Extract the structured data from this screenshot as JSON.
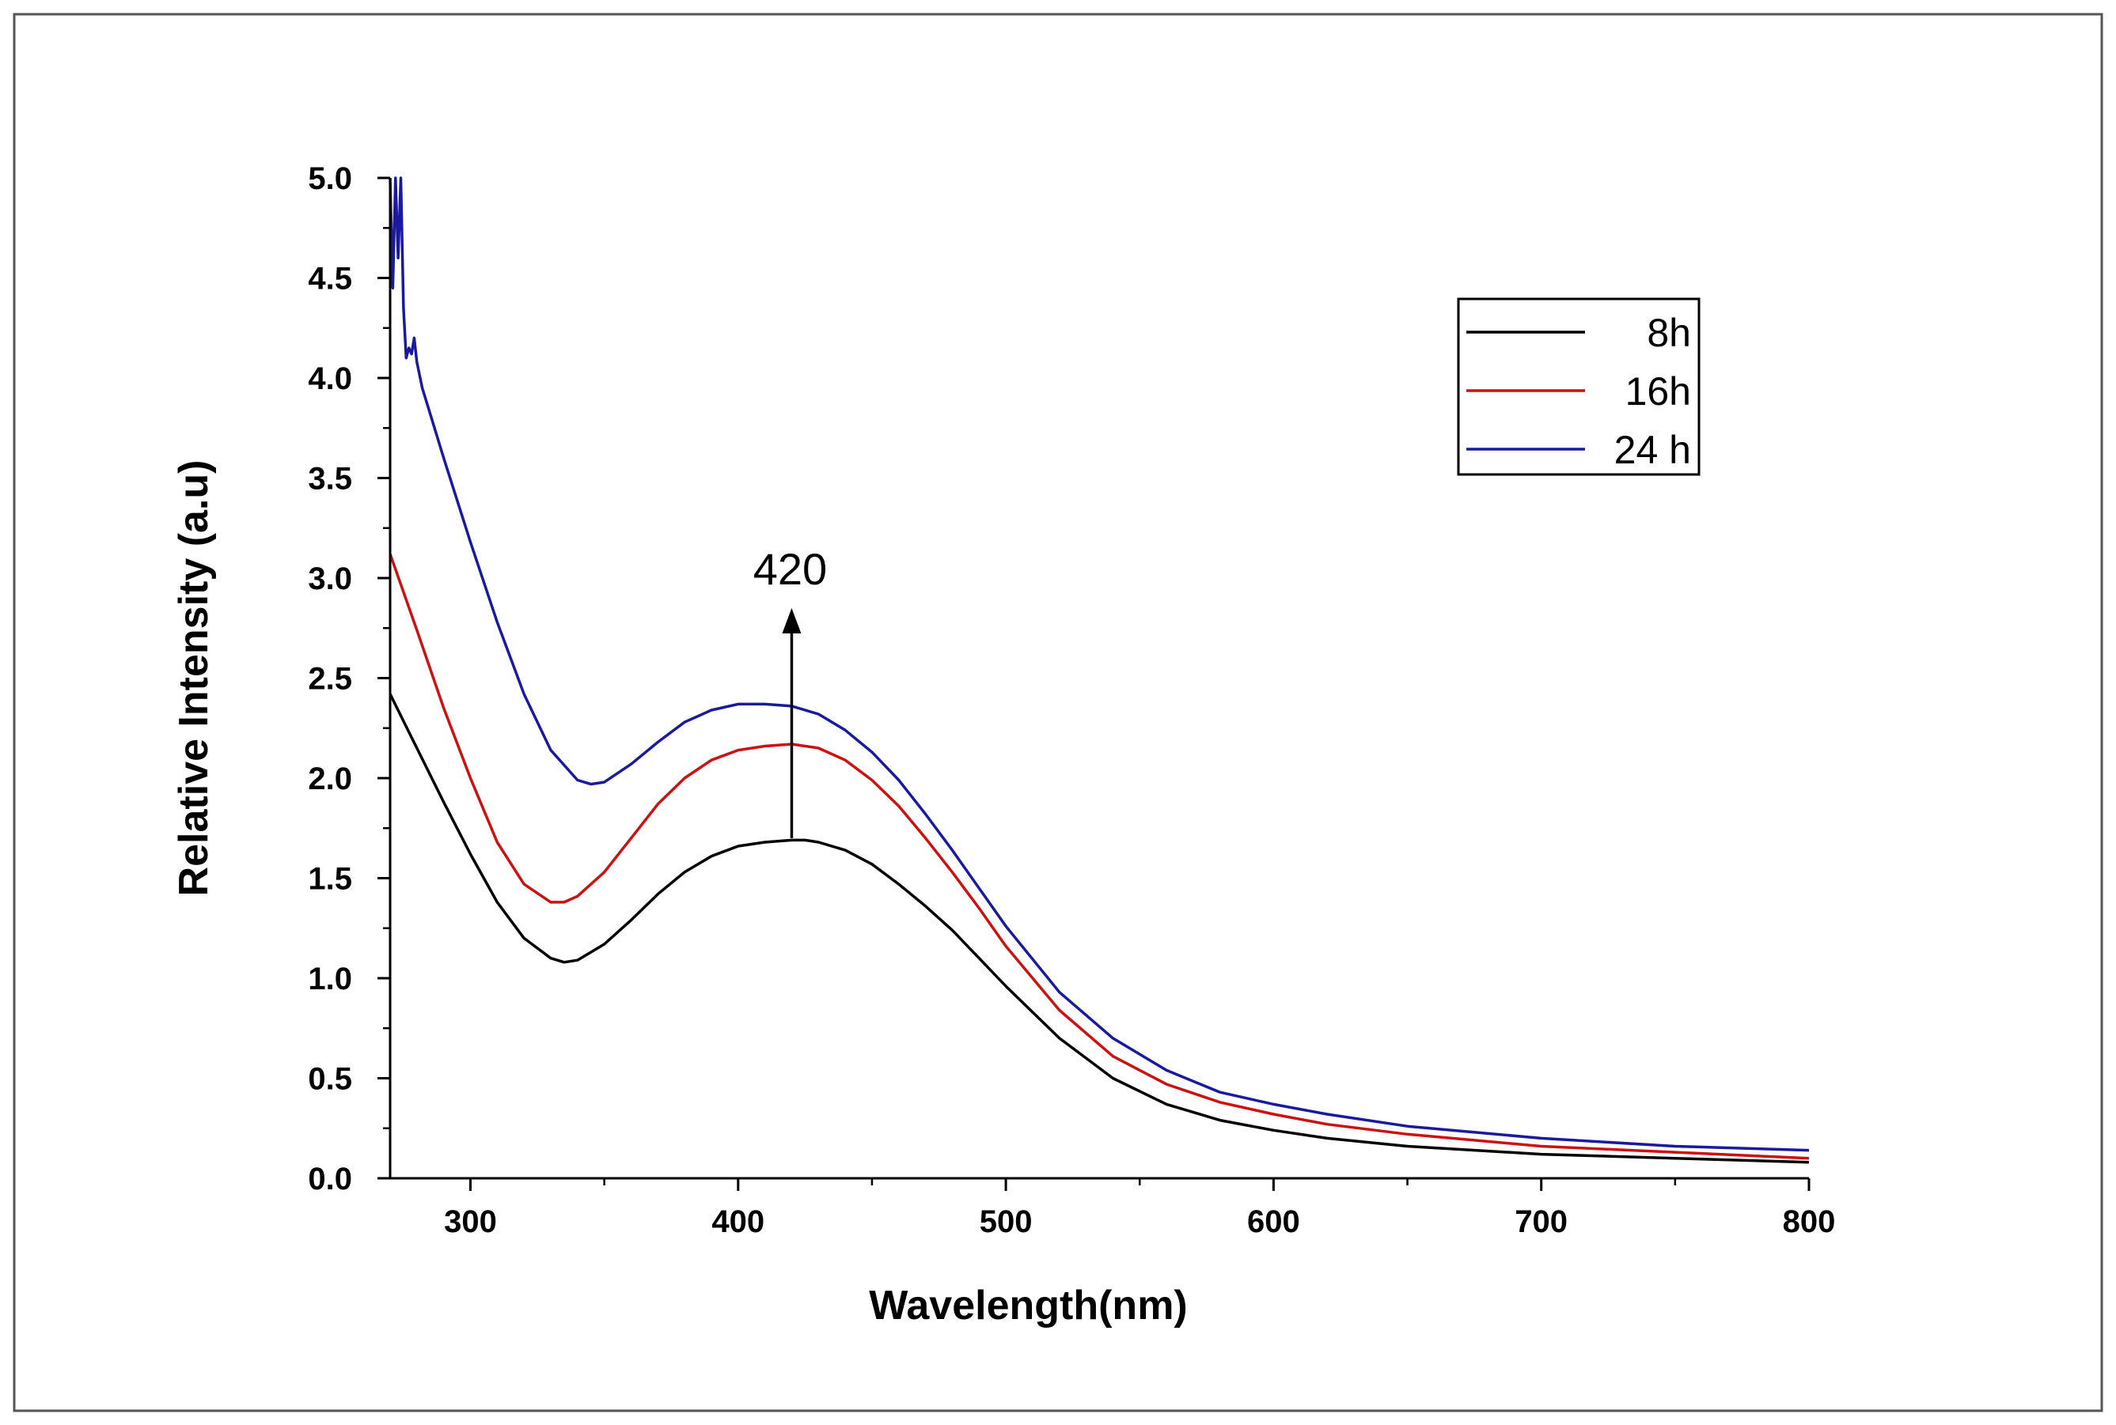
{
  "chart_data": {
    "type": "line",
    "title": "",
    "xlabel": "Wavelength(nm)",
    "ylabel": "Relative Intensity (a.u)",
    "xlim": [
      270,
      800
    ],
    "ylim": [
      0,
      5
    ],
    "xticks": [
      300,
      400,
      500,
      600,
      700,
      800
    ],
    "xtick_labels": [
      "300",
      "400",
      "500",
      "600",
      "700",
      "800"
    ],
    "yticks": [
      0,
      0.5,
      1,
      1.5,
      2,
      2.5,
      3,
      3.5,
      4,
      4.5,
      5
    ],
    "ytick_labels": [
      "0.0",
      "0.5",
      "1.0",
      "1.5",
      "2.0",
      "2.5",
      "3.0",
      "3.5",
      "4.0",
      "4.5",
      "5.0"
    ],
    "grid": false,
    "legend_position": "top-right",
    "annotation": {
      "text": "420",
      "x": 420,
      "y_from": 1.7,
      "y_to": 2.85
    },
    "series": [
      {
        "name": "8h",
        "color": "#000000",
        "x": [
          270,
          280,
          290,
          300,
          310,
          320,
          330,
          335,
          340,
          350,
          360,
          370,
          380,
          390,
          400,
          410,
          420,
          425,
          430,
          440,
          450,
          460,
          470,
          480,
          490,
          500,
          520,
          540,
          560,
          580,
          600,
          620,
          650,
          700,
          750,
          800
        ],
        "y": [
          2.42,
          2.15,
          1.88,
          1.62,
          1.38,
          1.2,
          1.1,
          1.08,
          1.09,
          1.17,
          1.29,
          1.42,
          1.53,
          1.61,
          1.66,
          1.68,
          1.69,
          1.69,
          1.68,
          1.64,
          1.57,
          1.47,
          1.36,
          1.24,
          1.1,
          0.96,
          0.7,
          0.5,
          0.37,
          0.29,
          0.24,
          0.2,
          0.16,
          0.12,
          0.1,
          0.08
        ]
      },
      {
        "name": "16h",
        "color": "#cc1111",
        "x": [
          270,
          280,
          290,
          300,
          310,
          320,
          330,
          335,
          340,
          350,
          360,
          370,
          380,
          390,
          400,
          410,
          420,
          430,
          440,
          450,
          460,
          470,
          480,
          490,
          500,
          520,
          540,
          560,
          580,
          600,
          620,
          650,
          700,
          750,
          800
        ],
        "y": [
          3.12,
          2.74,
          2.35,
          2.0,
          1.68,
          1.47,
          1.38,
          1.38,
          1.41,
          1.53,
          1.7,
          1.87,
          2.0,
          2.09,
          2.14,
          2.16,
          2.17,
          2.15,
          2.09,
          1.99,
          1.86,
          1.7,
          1.53,
          1.35,
          1.16,
          0.84,
          0.61,
          0.47,
          0.38,
          0.32,
          0.27,
          0.22,
          0.16,
          0.13,
          0.1
        ]
      },
      {
        "name": "24 h",
        "color": "#1a1a9e",
        "x": [
          270,
          271,
          272,
          273,
          274,
          275,
          276,
          277,
          278,
          279,
          280,
          282,
          285,
          290,
          300,
          310,
          320,
          330,
          340,
          345,
          350,
          360,
          370,
          380,
          390,
          400,
          410,
          420,
          430,
          440,
          450,
          460,
          470,
          480,
          490,
          500,
          520,
          540,
          560,
          580,
          600,
          620,
          650,
          700,
          750,
          800
        ],
        "y": [
          5.0,
          4.45,
          5.0,
          4.6,
          5.0,
          4.35,
          4.1,
          4.15,
          4.12,
          4.2,
          4.08,
          3.95,
          3.82,
          3.6,
          3.18,
          2.78,
          2.42,
          2.14,
          1.99,
          1.97,
          1.98,
          2.07,
          2.18,
          2.28,
          2.34,
          2.37,
          2.37,
          2.36,
          2.32,
          2.24,
          2.13,
          1.99,
          1.82,
          1.64,
          1.45,
          1.26,
          0.93,
          0.7,
          0.54,
          0.43,
          0.37,
          0.32,
          0.26,
          0.2,
          0.16,
          0.14
        ]
      }
    ]
  }
}
